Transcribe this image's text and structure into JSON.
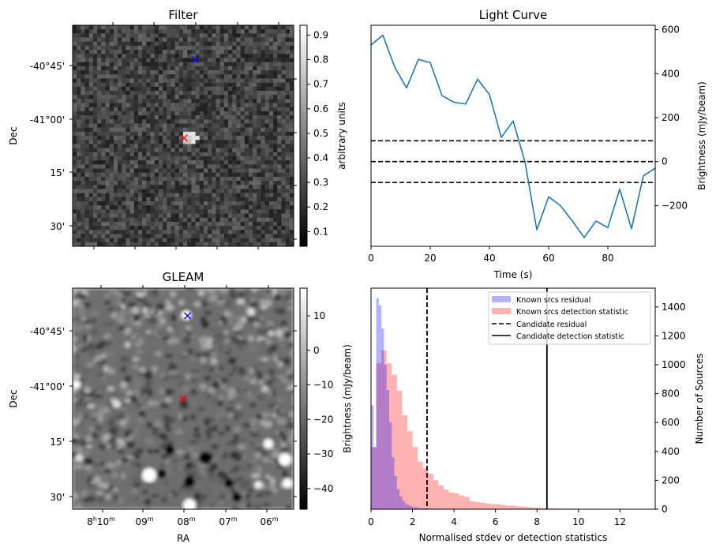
{
  "chart_data": [
    {
      "type": "heatmap",
      "title": "Filter",
      "ylabel": "Dec",
      "xlabel": "",
      "y_ticks": [
        "-40°45'",
        "-41°00'",
        "15'",
        "30'"
      ],
      "colorbar": {
        "label": "arbitrary units",
        "ticks": [
          "0.1",
          "0.2",
          "0.3",
          "0.4",
          "0.5",
          "0.6",
          "0.7",
          "0.8",
          "0.9"
        ],
        "range": [
          0.04,
          0.94
        ],
        "cmap": "gray"
      },
      "markers": [
        {
          "name": "blue-cross",
          "color": "#0000ff",
          "u": 0.555,
          "v": 0.155
        },
        {
          "name": "red-cross",
          "color": "#ff0000",
          "u": 0.505,
          "v": 0.51
        }
      ]
    },
    {
      "type": "line",
      "title": "Light Curve",
      "xlabel": "Time (s)",
      "ylabel": "Brightness (mJy/beam)",
      "xlim": [
        0,
        96
      ],
      "ylim": [
        -385,
        620
      ],
      "x_ticks": [
        0,
        20,
        40,
        60,
        80
      ],
      "y_ticks": [
        -200,
        0,
        200,
        400,
        600
      ],
      "y_tick_labels": [
        "−200",
        "0",
        "200",
        "400",
        "600"
      ],
      "series": [
        {
          "name": "light-curve",
          "color": "#1f77b4",
          "x": [
            0,
            4,
            8,
            12,
            16,
            20,
            24,
            28,
            32,
            36,
            40,
            44,
            48,
            52,
            56,
            60,
            64,
            68,
            72,
            76,
            80,
            84,
            88,
            92,
            96
          ],
          "y": [
            530,
            575,
            430,
            335,
            465,
            450,
            300,
            270,
            262,
            375,
            305,
            110,
            185,
            0,
            -310,
            -160,
            -200,
            -270,
            -345,
            -270,
            -300,
            -125,
            -305,
            -65,
            -30
          ]
        }
      ],
      "hlines": [
        95,
        0,
        -95
      ]
    },
    {
      "type": "heatmap",
      "title": "GLEAM",
      "xlabel": "RA",
      "ylabel": "Dec",
      "x_ticks": [
        "8h10m",
        "09m",
        "08m",
        "07m",
        "06m"
      ],
      "x_tick_parts": [
        [
          "8",
          "h",
          "10",
          "m"
        ],
        [
          "",
          "",
          "09",
          "m"
        ],
        [
          "",
          "",
          "08",
          "m"
        ],
        [
          "",
          "",
          "07",
          "m"
        ],
        [
          "",
          "",
          "06",
          "m"
        ]
      ],
      "y_ticks": [
        "-40°45'",
        "-41°00'",
        "15'",
        "30'"
      ],
      "colorbar": {
        "label": "Brightness (mJy/beam)",
        "ticks": [
          "10",
          "0",
          "−10",
          "−20",
          "−30",
          "−40"
        ],
        "tick_values": [
          10,
          0,
          -10,
          -20,
          -30,
          -40
        ],
        "range": [
          -46,
          18
        ],
        "cmap": "gray"
      },
      "markers": [
        {
          "name": "blue-cross",
          "color": "#0000ff",
          "u": 0.52,
          "v": 0.125
        },
        {
          "name": "red-cross",
          "color": "#ff0000",
          "u": 0.5,
          "v": 0.5
        }
      ]
    },
    {
      "type": "bar",
      "subtype": "histogram",
      "xlabel": "Normalised stdev or detection statistics",
      "ylabel": "Number of Sources",
      "xlim": [
        0,
        13.7
      ],
      "ylim": [
        0,
        1530
      ],
      "x_ticks": [
        0,
        2,
        4,
        6,
        8,
        10,
        12
      ],
      "y_ticks": [
        0,
        200,
        400,
        600,
        800,
        1000,
        1200,
        1400
      ],
      "bin_width": 0.25,
      "series": [
        {
          "name": "Known srcs residual",
          "color": "#0000ff",
          "alpha": 0.3,
          "bin_starts": [
            0,
            0.125,
            0.25,
            0.375,
            0.5,
            0.625,
            0.75,
            0.875,
            1.0,
            1.125,
            1.25,
            1.375,
            1.5,
            1.625,
            1.75,
            1.875,
            2.0,
            2.25,
            2.5,
            2.75,
            3.0,
            3.5,
            4.0,
            4.5
          ],
          "values": [
            720,
            430,
            1460,
            1410,
            1250,
            1000,
            825,
            600,
            360,
            230,
            140,
            90,
            60,
            40,
            30,
            20,
            15,
            8,
            6,
            5,
            4,
            3,
            2,
            2
          ]
        },
        {
          "name": "Known srcs detection statistic",
          "color": "#ff0000",
          "alpha": 0.3,
          "bin_starts": [
            0,
            0.25,
            0.5,
            0.75,
            1.0,
            1.25,
            1.5,
            1.75,
            2.0,
            2.25,
            2.5,
            2.75,
            3.0,
            3.25,
            3.5,
            3.75,
            4.0,
            4.25,
            4.5,
            4.75,
            5.0,
            5.25,
            5.5,
            5.75,
            6.0,
            6.25,
            6.5,
            6.75,
            7.0,
            7.25,
            7.5,
            7.75,
            8.0,
            8.25,
            8.5,
            8.75,
            9.0,
            9.5,
            10.0,
            10.5,
            11.0,
            11.5,
            12.0,
            12.5
          ],
          "values": [
            430,
            1010,
            1100,
            1010,
            930,
            820,
            650,
            540,
            430,
            330,
            285,
            245,
            200,
            165,
            135,
            115,
            110,
            95,
            85,
            55,
            50,
            45,
            40,
            35,
            35,
            30,
            25,
            25,
            20,
            18,
            15,
            12,
            10,
            8,
            6,
            5,
            4,
            4,
            3,
            3,
            2,
            2,
            2,
            2
          ]
        }
      ],
      "vlines": [
        {
          "name": "Candidate residual",
          "x": 2.7,
          "style": "dashed"
        },
        {
          "name": "Candidate detection statistic",
          "x": 8.48,
          "style": "solid"
        }
      ],
      "legend": {
        "position": "top-right",
        "entries": [
          "Known srcs residual",
          "Known srcs detection statistic",
          "Candidate residual",
          "Candidate detection statistic"
        ]
      }
    }
  ]
}
